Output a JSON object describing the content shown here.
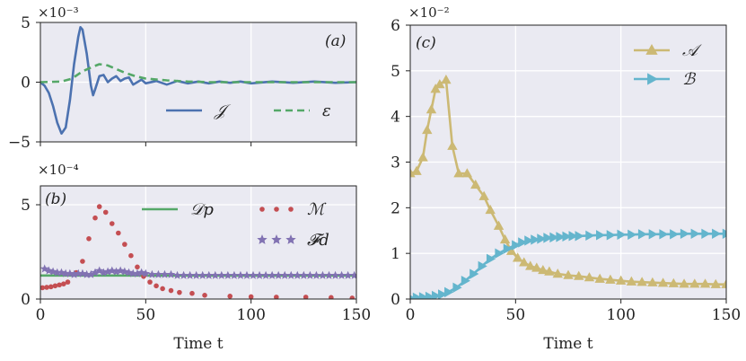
{
  "chart_data": [
    {
      "id": "a",
      "type": "line",
      "panel_label": "(a)",
      "y_scale_label": "×10⁻³",
      "xlim": [
        0,
        150
      ],
      "ylim": [
        -5,
        5
      ],
      "x_ticks": [
        0,
        50,
        100,
        150
      ],
      "y_ticks": [
        -5,
        0,
        5
      ],
      "y_tick_labels": [
        "−5",
        "0",
        "5"
      ],
      "x_tick_labels_shown": false,
      "legend_position": "bottom-right",
      "legend_layout": "row",
      "series": [
        {
          "name": "𝒥",
          "color": "#4c72b0",
          "style": "solid",
          "points": [
            [
              0,
              0
            ],
            [
              2,
              -0.3
            ],
            [
              4,
              -0.9
            ],
            [
              6,
              -2.0
            ],
            [
              8,
              -3.4
            ],
            [
              10,
              -4.3
            ],
            [
              12,
              -3.8
            ],
            [
              14,
              -1.5
            ],
            [
              16,
              1.5
            ],
            [
              18,
              3.8
            ],
            [
              19,
              4.6
            ],
            [
              20,
              4.4
            ],
            [
              22,
              2.4
            ],
            [
              24,
              -0.3
            ],
            [
              25,
              -1.1
            ],
            [
              26,
              -0.6
            ],
            [
              28,
              0.5
            ],
            [
              30,
              0.6
            ],
            [
              32,
              0.0
            ],
            [
              34,
              0.3
            ],
            [
              36,
              0.5
            ],
            [
              38,
              0.1
            ],
            [
              40,
              0.3
            ],
            [
              42,
              0.4
            ],
            [
              44,
              -0.2
            ],
            [
              46,
              0.0
            ],
            [
              48,
              0.2
            ],
            [
              50,
              -0.1
            ],
            [
              55,
              0.1
            ],
            [
              60,
              -0.2
            ],
            [
              65,
              0.1
            ],
            [
              70,
              -0.1
            ],
            [
              75,
              0.05
            ],
            [
              80,
              -0.1
            ],
            [
              85,
              0.05
            ],
            [
              90,
              -0.05
            ],
            [
              95,
              0.05
            ],
            [
              100,
              -0.1
            ],
            [
              110,
              0.05
            ],
            [
              120,
              -0.05
            ],
            [
              130,
              0.05
            ],
            [
              140,
              -0.05
            ],
            [
              150,
              0.0
            ]
          ]
        },
        {
          "name": "ε",
          "color": "#55a868",
          "style": "dashed",
          "points": [
            [
              0,
              0
            ],
            [
              10,
              0.05
            ],
            [
              15,
              0.3
            ],
            [
              20,
              0.9
            ],
            [
              25,
              1.3
            ],
            [
              28,
              1.5
            ],
            [
              32,
              1.4
            ],
            [
              36,
              1.1
            ],
            [
              40,
              0.8
            ],
            [
              45,
              0.5
            ],
            [
              50,
              0.3
            ],
            [
              60,
              0.15
            ],
            [
              70,
              0.05
            ],
            [
              80,
              0.0
            ],
            [
              100,
              0.0
            ],
            [
              150,
              0.0
            ]
          ]
        }
      ]
    },
    {
      "id": "b",
      "type": "scatter",
      "panel_label": "(b)",
      "y_scale_label": "×10⁻⁴",
      "xlim": [
        0,
        150
      ],
      "ylim": [
        0,
        6
      ],
      "x_ticks": [
        0,
        50,
        100,
        150
      ],
      "x_tick_labels": [
        "0",
        "50",
        "100",
        "150"
      ],
      "y_ticks": [
        0,
        5
      ],
      "y_tick_labels": [
        "0",
        "5"
      ],
      "xlabel": "Time t",
      "legend_position": "top-right",
      "legend_layout": "grid",
      "series": [
        {
          "name": "𝒟p",
          "color": "#55a868",
          "style": "line",
          "points": [
            [
              0,
              1.25
            ],
            [
              150,
              1.25
            ]
          ]
        },
        {
          "name": "ℳ",
          "color": "#c44e52",
          "style": "dots",
          "points": [
            [
              1,
              0.6
            ],
            [
              3,
              0.62
            ],
            [
              5,
              0.65
            ],
            [
              7,
              0.7
            ],
            [
              9,
              0.75
            ],
            [
              11,
              0.8
            ],
            [
              13,
              0.9
            ],
            [
              17,
              1.4
            ],
            [
              20,
              2.0
            ],
            [
              23,
              3.2
            ],
            [
              26,
              4.3
            ],
            [
              28,
              4.9
            ],
            [
              31,
              4.6
            ],
            [
              34,
              4.0
            ],
            [
              37,
              3.5
            ],
            [
              40,
              2.9
            ],
            [
              43,
              2.3
            ],
            [
              46,
              1.7
            ],
            [
              49,
              1.2
            ],
            [
              52,
              0.9
            ],
            [
              55,
              0.7
            ],
            [
              58,
              0.55
            ],
            [
              62,
              0.45
            ],
            [
              66,
              0.35
            ],
            [
              72,
              0.3
            ],
            [
              78,
              0.2
            ],
            [
              90,
              0.15
            ],
            [
              100,
              0.12
            ],
            [
              112,
              0.1
            ],
            [
              126,
              0.1
            ],
            [
              138,
              0.08
            ],
            [
              148,
              0.05
            ]
          ]
        },
        {
          "name": "𝓕d",
          "color": "#8172b2",
          "style": "stars",
          "points": [
            [
              2,
              1.6
            ],
            [
              4,
              1.5
            ],
            [
              6,
              1.45
            ],
            [
              8,
              1.4
            ],
            [
              10,
              1.4
            ],
            [
              12,
              1.35
            ],
            [
              14,
              1.35
            ],
            [
              16,
              1.3
            ],
            [
              18,
              1.35
            ],
            [
              20,
              1.35
            ],
            [
              22,
              1.3
            ],
            [
              24,
              1.3
            ],
            [
              26,
              1.4
            ],
            [
              28,
              1.5
            ],
            [
              30,
              1.4
            ],
            [
              32,
              1.45
            ],
            [
              34,
              1.5
            ],
            [
              36,
              1.45
            ],
            [
              38,
              1.5
            ],
            [
              40,
              1.45
            ],
            [
              42,
              1.4
            ],
            [
              44,
              1.35
            ],
            [
              46,
              1.35
            ],
            [
              48,
              1.4
            ],
            [
              50,
              1.35
            ],
            [
              53,
              1.3
            ],
            [
              56,
              1.3
            ],
            [
              59,
              1.3
            ],
            [
              62,
              1.3
            ],
            [
              65,
              1.25
            ],
            [
              68,
              1.25
            ],
            [
              71,
              1.25
            ],
            [
              74,
              1.25
            ],
            [
              77,
              1.25
            ],
            [
              80,
              1.25
            ],
            [
              83,
              1.25
            ],
            [
              86,
              1.25
            ],
            [
              89,
              1.25
            ],
            [
              92,
              1.25
            ],
            [
              95,
              1.25
            ],
            [
              98,
              1.25
            ],
            [
              101,
              1.25
            ],
            [
              104,
              1.25
            ],
            [
              107,
              1.25
            ],
            [
              110,
              1.25
            ],
            [
              113,
              1.25
            ],
            [
              116,
              1.25
            ],
            [
              119,
              1.25
            ],
            [
              122,
              1.25
            ],
            [
              125,
              1.25
            ],
            [
              128,
              1.25
            ],
            [
              131,
              1.25
            ],
            [
              134,
              1.25
            ],
            [
              137,
              1.25
            ],
            [
              140,
              1.25
            ],
            [
              143,
              1.25
            ],
            [
              146,
              1.25
            ],
            [
              149,
              1.25
            ]
          ]
        }
      ]
    },
    {
      "id": "c",
      "type": "line",
      "panel_label": "(c)",
      "y_scale_label": "×10⁻²",
      "xlim": [
        0,
        150
      ],
      "ylim": [
        0,
        6
      ],
      "x_ticks": [
        0,
        50,
        100,
        150
      ],
      "x_tick_labels": [
        "0",
        "50",
        "100",
        "150"
      ],
      "y_ticks": [
        0,
        1,
        2,
        3,
        4,
        5,
        6
      ],
      "y_tick_labels": [
        "0",
        "1",
        "2",
        "3",
        "4",
        "5",
        "6"
      ],
      "xlabel": "Time t",
      "legend_position": "top-right",
      "legend_layout": "column",
      "series": [
        {
          "name": "𝒜",
          "color": "#ccb974",
          "style": "solid",
          "marker": "triangle-up",
          "points": [
            [
              0,
              2.75
            ],
            [
              3,
              2.8
            ],
            [
              6,
              3.1
            ],
            [
              8,
              3.7
            ],
            [
              10,
              4.15
            ],
            [
              12,
              4.6
            ],
            [
              14,
              4.7
            ],
            [
              17,
              4.8
            ],
            [
              20,
              3.35
            ],
            [
              23,
              2.75
            ],
            [
              27,
              2.75
            ],
            [
              31,
              2.5
            ],
            [
              35,
              2.25
            ],
            [
              38,
              1.95
            ],
            [
              42,
              1.6
            ],
            [
              45,
              1.3
            ],
            [
              48,
              1.05
            ],
            [
              51,
              0.9
            ],
            [
              54,
              0.8
            ],
            [
              57,
              0.72
            ],
            [
              60,
              0.68
            ],
            [
              63,
              0.63
            ],
            [
              66,
              0.6
            ],
            [
              70,
              0.55
            ],
            [
              75,
              0.52
            ],
            [
              80,
              0.5
            ],
            [
              85,
              0.47
            ],
            [
              90,
              0.44
            ],
            [
              95,
              0.42
            ],
            [
              100,
              0.4
            ],
            [
              105,
              0.38
            ],
            [
              110,
              0.37
            ],
            [
              115,
              0.36
            ],
            [
              120,
              0.35
            ],
            [
              125,
              0.34
            ],
            [
              130,
              0.33
            ],
            [
              135,
              0.33
            ],
            [
              140,
              0.33
            ],
            [
              145,
              0.32
            ],
            [
              150,
              0.32
            ]
          ]
        },
        {
          "name": "ℬ",
          "color": "#64b5cd",
          "style": "solid",
          "marker": "triangle-right",
          "points": [
            [
              0,
              0.02
            ],
            [
              3,
              0.03
            ],
            [
              6,
              0.04
            ],
            [
              9,
              0.05
            ],
            [
              12,
              0.07
            ],
            [
              15,
              0.1
            ],
            [
              18,
              0.15
            ],
            [
              22,
              0.25
            ],
            [
              26,
              0.4
            ],
            [
              30,
              0.55
            ],
            [
              34,
              0.72
            ],
            [
              38,
              0.88
            ],
            [
              42,
              1.0
            ],
            [
              46,
              1.1
            ],
            [
              50,
              1.18
            ],
            [
              53,
              1.24
            ],
            [
              56,
              1.28
            ],
            [
              59,
              1.3
            ],
            [
              62,
              1.32
            ],
            [
              65,
              1.34
            ],
            [
              68,
              1.35
            ],
            [
              71,
              1.36
            ],
            [
              74,
              1.37
            ],
            [
              77,
              1.38
            ],
            [
              80,
              1.38
            ],
            [
              85,
              1.39
            ],
            [
              90,
              1.4
            ],
            [
              95,
              1.4
            ],
            [
              100,
              1.41
            ],
            [
              105,
              1.41
            ],
            [
              110,
              1.42
            ],
            [
              115,
              1.42
            ],
            [
              120,
              1.42
            ],
            [
              125,
              1.42
            ],
            [
              130,
              1.43
            ],
            [
              135,
              1.43
            ],
            [
              140,
              1.43
            ],
            [
              145,
              1.43
            ],
            [
              150,
              1.43
            ]
          ]
        }
      ]
    }
  ]
}
